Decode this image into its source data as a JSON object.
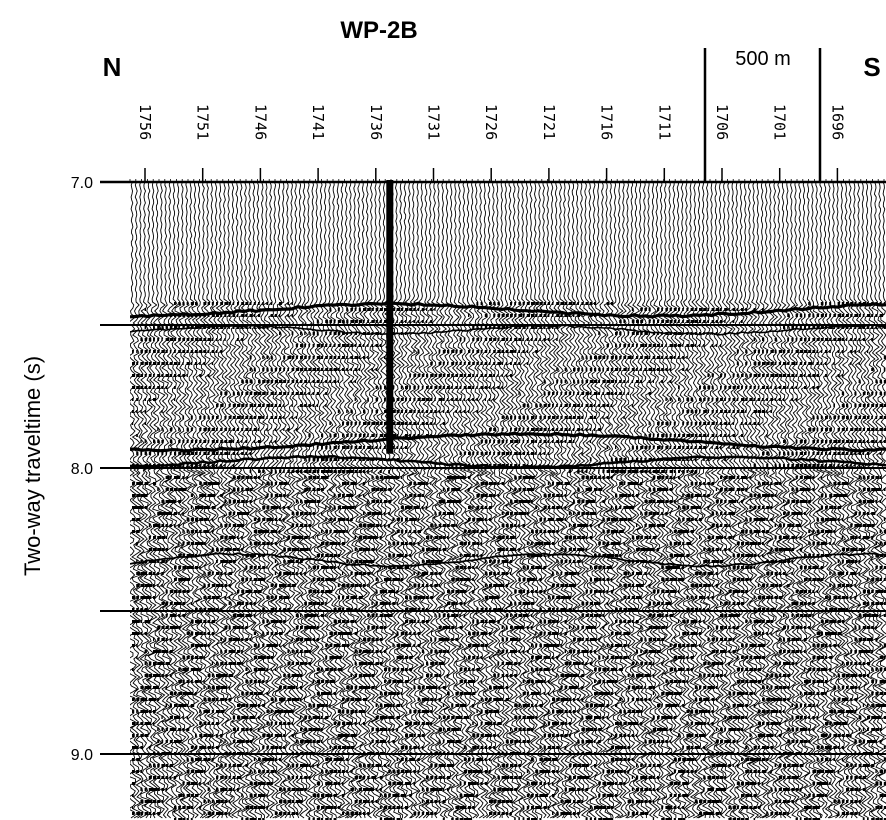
{
  "figure": {
    "title": "WP-2B",
    "direction_left": "N",
    "direction_right": "S",
    "scale_bar_label": "500 m",
    "y_axis_label": "Two-way traveltime (s)",
    "y_ticks": [
      {
        "value": 7.0,
        "label": "7.0"
      },
      {
        "value": 7.5,
        "label": ""
      },
      {
        "value": 8.0,
        "label": "8.0"
      },
      {
        "value": 8.5,
        "label": ""
      },
      {
        "value": 9.0,
        "label": "9.0"
      }
    ],
    "y_range": [
      7.0,
      9.23
    ],
    "cdp_labels": [
      "1756",
      "1751",
      "1746",
      "1741",
      "1736",
      "1731",
      "1726",
      "1721",
      "1716",
      "1711",
      "1706",
      "1701",
      "1696"
    ],
    "well_marker_cdp": "1734",
    "well_bottom_twt": 7.95,
    "colors": {
      "ink": "#000000",
      "background": "#ffffff"
    }
  }
}
